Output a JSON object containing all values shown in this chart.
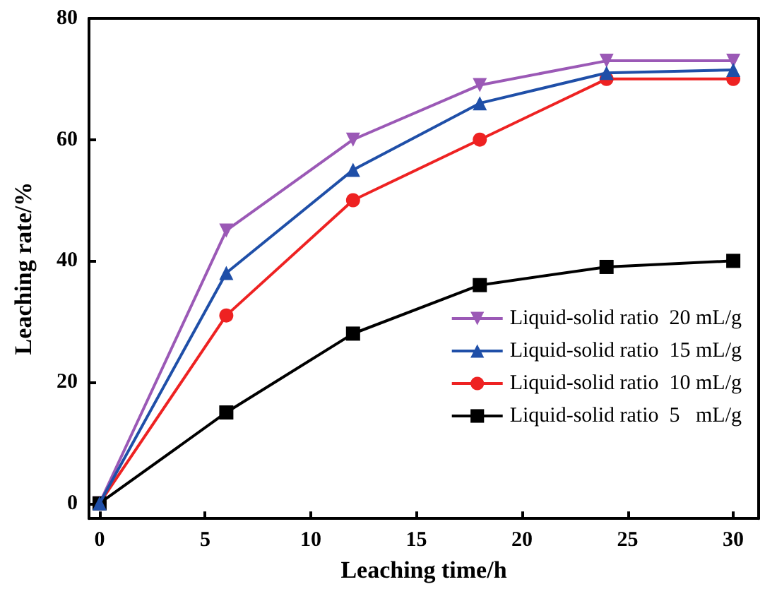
{
  "chart_data": {
    "type": "line",
    "xlabel": "Leaching time/h",
    "ylabel": "Leaching rate/%",
    "x": [
      0,
      6,
      12,
      18,
      24,
      30
    ],
    "series": [
      {
        "name": "Liquid-solid ratio  20 mL/g",
        "color": "#9b59b6",
        "marker": "triangle_down",
        "values": [
          0,
          45,
          60,
          69,
          73,
          73
        ]
      },
      {
        "name": "Liquid-solid ratio  15 mL/g",
        "color": "#1f4fa8",
        "marker": "triangle",
        "values": [
          0,
          38,
          55,
          66,
          71,
          71.5
        ]
      },
      {
        "name": "Liquid-solid ratio  10 mL/g",
        "color": "#ee2222",
        "marker": "circle",
        "values": [
          0,
          31,
          50,
          60,
          70,
          70
        ]
      },
      {
        "name": "Liquid-solid ratio  5   mL/g",
        "color": "#000000",
        "marker": "square",
        "values": [
          0,
          15,
          28,
          36,
          39,
          40
        ]
      }
    ],
    "xlim": [
      -0.5,
      31.2
    ],
    "xticks": [
      0,
      5,
      10,
      15,
      20,
      25,
      30
    ],
    "ylim": [
      -2.5,
      80
    ],
    "yticks": [
      0,
      20,
      40,
      60,
      80
    ],
    "grid": false,
    "legend": "bottom right"
  }
}
